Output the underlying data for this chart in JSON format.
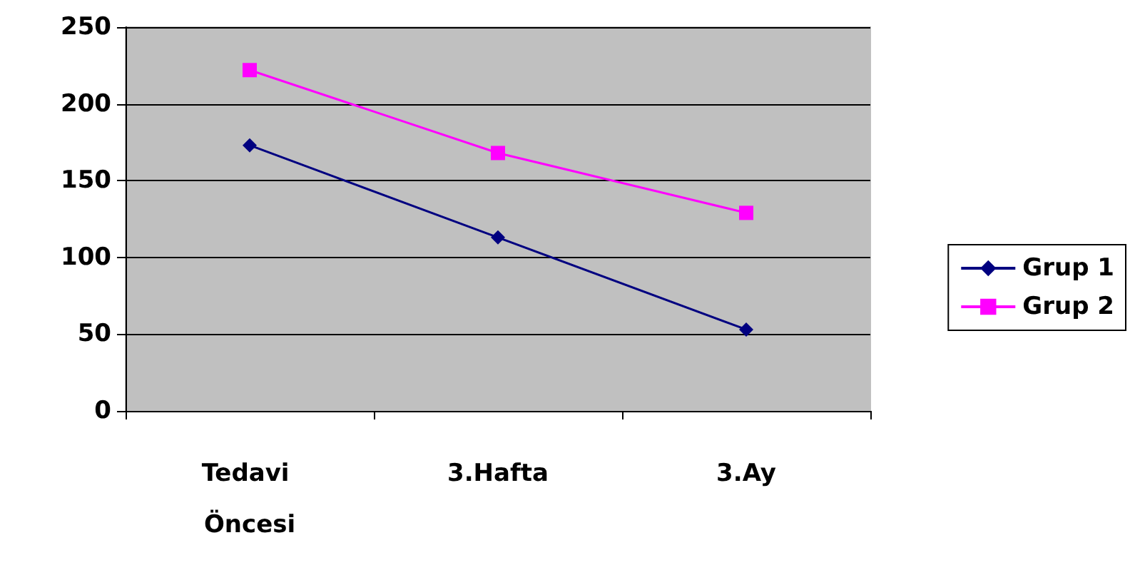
{
  "chart_data": {
    "type": "line",
    "categories": [
      "Tedavi Öncesi",
      "3.Hafta",
      "3.Ay"
    ],
    "series": [
      {
        "name": "Grup 1",
        "color": "#000080",
        "marker": "diamond",
        "values": [
          173,
          113,
          53
        ]
      },
      {
        "name": "Grup 2",
        "color": "#ff00ff",
        "marker": "square",
        "values": [
          222,
          168,
          129
        ]
      }
    ],
    "ylim": [
      0,
      250
    ],
    "yticks": [
      0,
      50,
      100,
      150,
      200,
      250
    ],
    "grid": "y",
    "legend": "right"
  }
}
